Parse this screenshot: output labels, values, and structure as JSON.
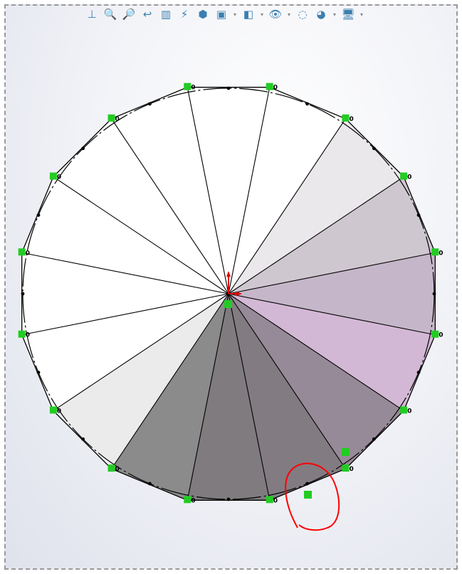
{
  "toolbar": {
    "items": [
      {
        "name": "view-orientation-normal-icon",
        "dropdown": false
      },
      {
        "name": "zoom-to-fit-icon",
        "dropdown": false
      },
      {
        "name": "zoom-to-area-icon",
        "dropdown": false
      },
      {
        "name": "previous-view-icon",
        "dropdown": false
      },
      {
        "name": "section-view-icon",
        "dropdown": false
      },
      {
        "name": "dynamic-annotation-views-icon",
        "dropdown": false
      },
      {
        "name": "view-orientation-icon",
        "dropdown": false
      },
      {
        "name": "display-style-icon",
        "dropdown": true
      },
      {
        "name": "hide-show-items-icon",
        "dropdown": true
      },
      {
        "name": "edit-appearance-eye-icon",
        "dropdown": true
      },
      {
        "name": "apply-scene-icon",
        "dropdown": false
      },
      {
        "name": "view-settings-icon",
        "dropdown": true
      },
      {
        "name": "monitor-display-icon",
        "dropdown": true
      }
    ]
  },
  "sketch": {
    "relation_label": "0",
    "sides": 16,
    "sector_colors": [
      "#ffffff",
      "#ffffff",
      "#ebe8ec",
      "#cfc7cf",
      "#c5b6c9",
      "#d3b8d5",
      "#978a98",
      "#827c82",
      "#7f7b7f",
      "#8b8b8b",
      "#ebebeb",
      "#ffffff",
      "#ffffff",
      "#ffffff",
      "#ffffff",
      "#ffffff"
    ],
    "relation_color": "#22cc22",
    "annotation_color": "#ff0000",
    "origin_color": "#e00000"
  }
}
